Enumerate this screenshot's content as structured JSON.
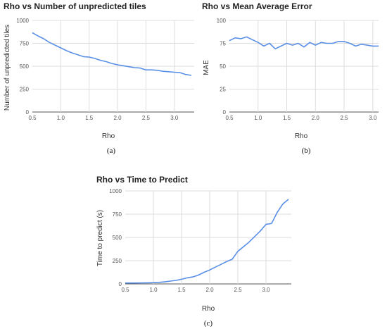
{
  "chart_data": [
    {
      "type": "line",
      "title": "Rho vs Number of unpredicted tiles",
      "xlabel": "Rho",
      "ylabel": "Number of unpredicted tiles",
      "caption": "(a)",
      "xlim": [
        0.5,
        3.35
      ],
      "ylim": [
        0,
        1000
      ],
      "xticks": [
        "0.5",
        "1.0",
        "1.5",
        "2.0",
        "2.5",
        "3.0"
      ],
      "yticks": [
        "0",
        "250",
        "500",
        "750",
        "1000"
      ],
      "grid": true,
      "color": "#5a8fe6",
      "x": [
        0.5,
        0.6,
        0.7,
        0.8,
        0.9,
        1.0,
        1.1,
        1.2,
        1.3,
        1.4,
        1.5,
        1.6,
        1.7,
        1.8,
        1.9,
        2.0,
        2.1,
        2.2,
        2.3,
        2.4,
        2.5,
        2.6,
        2.7,
        2.8,
        2.9,
        3.0,
        3.1,
        3.2,
        3.3
      ],
      "y": [
        865,
        830,
        800,
        760,
        730,
        700,
        670,
        645,
        625,
        605,
        600,
        585,
        565,
        550,
        530,
        515,
        505,
        495,
        485,
        480,
        460,
        460,
        455,
        445,
        440,
        435,
        430,
        410,
        400
      ]
    },
    {
      "type": "line",
      "title": "Rho vs Mean Average Error",
      "xlabel": "Rho",
      "ylabel": "MAE",
      "caption": "(b)",
      "xlim": [
        0.5,
        3.1
      ],
      "ylim": [
        0,
        100
      ],
      "xticks": [
        "0.5",
        "1.0",
        "1.5",
        "2.0",
        "2.5",
        "3.0"
      ],
      "yticks": [
        "0",
        "25",
        "50",
        "75",
        "100"
      ],
      "grid": true,
      "color": "#5a8fe6",
      "x": [
        0.5,
        0.6,
        0.7,
        0.8,
        0.9,
        1.0,
        1.1,
        1.2,
        1.3,
        1.4,
        1.5,
        1.6,
        1.7,
        1.8,
        1.9,
        2.0,
        2.1,
        2.2,
        2.3,
        2.4,
        2.5,
        2.6,
        2.7,
        2.8,
        2.9,
        3.0,
        3.1
      ],
      "y": [
        78,
        81,
        80,
        82,
        79,
        76,
        72,
        75,
        69,
        72,
        75,
        73,
        75,
        71,
        76,
        73,
        76,
        75,
        75,
        77,
        77,
        75,
        72,
        74,
        73,
        72,
        72
      ]
    },
    {
      "type": "line",
      "title": "Rho vs Time to Predict",
      "xlabel": "Rho",
      "ylabel": "Time to predict (s)",
      "caption": "(c)",
      "xlim": [
        0.5,
        3.45
      ],
      "ylim": [
        0,
        1000
      ],
      "xticks": [
        "0.5",
        "1.0",
        "1.5",
        "2.0",
        "2.5",
        "3.0"
      ],
      "yticks": [
        "0",
        "250",
        "500",
        "750",
        "1000"
      ],
      "grid": true,
      "color": "#5a8fe6",
      "x": [
        0.5,
        0.6,
        0.7,
        0.8,
        0.9,
        1.0,
        1.1,
        1.2,
        1.3,
        1.4,
        1.5,
        1.6,
        1.7,
        1.8,
        1.9,
        2.0,
        2.1,
        2.2,
        2.3,
        2.4,
        2.5,
        2.6,
        2.7,
        2.8,
        2.9,
        3.0,
        3.1,
        3.2,
        3.3,
        3.4
      ],
      "y": [
        10,
        10,
        10,
        11,
        12,
        14,
        17,
        22,
        30,
        38,
        50,
        65,
        75,
        95,
        125,
        150,
        180,
        210,
        240,
        265,
        350,
        400,
        450,
        510,
        570,
        640,
        650,
        770,
        860,
        910
      ]
    }
  ]
}
